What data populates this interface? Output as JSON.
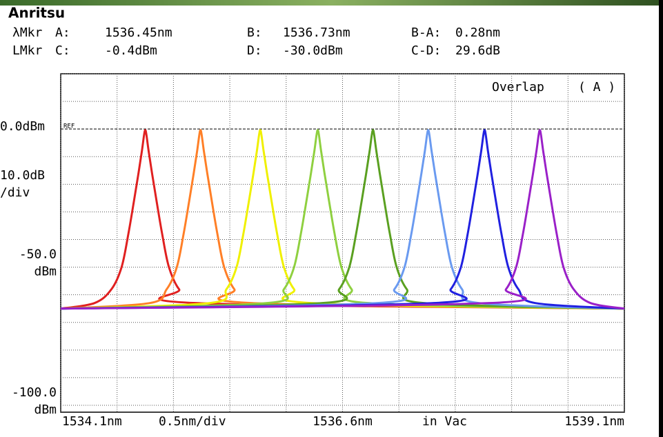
{
  "header": {
    "logo": "Anritsu"
  },
  "markers": {
    "rows": [
      [
        "λMkr",
        "A:",
        "1536.45nm",
        "B:",
        "1536.73nm",
        "B-A:",
        "0.28nm"
      ],
      [
        "LMkr",
        "C:",
        "-0.4dBm",
        "D:",
        "-30.0dBm",
        "C-D:",
        "29.6dB"
      ]
    ]
  },
  "chart_data": {
    "type": "line",
    "annotations": {
      "overlap": "Overlap",
      "trace": "( A )",
      "ref": "REF"
    },
    "xlim": [
      1534.1,
      1539.1
    ],
    "xticks": [
      1534.1,
      1534.6,
      1535.1,
      1535.6,
      1536.1,
      1536.6,
      1537.1,
      1537.6,
      1538.1,
      1538.6,
      1539.1
    ],
    "x_labels": [
      {
        "value": 1534.1,
        "label": "1534.1nm"
      },
      {
        "value": 1536.6,
        "label": "1536.6nm"
      },
      {
        "value": 1539.1,
        "label": "1539.1nm"
      }
    ],
    "x_scale": "0.5nm/div",
    "x_note": "in Vac",
    "ylim": [
      -102.5,
      20
    ],
    "yticks": [
      20,
      10,
      0,
      -10,
      -20,
      -30,
      -40,
      -50,
      -60,
      -70,
      -80,
      -90,
      -100
    ],
    "y_labels": [
      {
        "value": 0,
        "label": "0.0dBm"
      },
      {
        "value": -50,
        "label": "-50.0"
      },
      {
        "value": -100,
        "label": "-100.0"
      }
    ],
    "y_unit": "dBm",
    "y_scale": "10.0dB",
    "y_scale_unit": "/div",
    "series": [
      {
        "color": "#e02020",
        "x": [
          1534.1,
          1534.4,
          1534.55,
          1534.64,
          1534.7,
          1534.75,
          1534.79,
          1534.82,
          1534.84,
          1534.85,
          1534.86,
          1534.88,
          1534.91,
          1534.95,
          1535.0,
          1535.06,
          1535.15,
          1535.3,
          1539.1
        ],
        "values": [
          -65,
          -63,
          -58,
          -50,
          -38,
          -26,
          -16,
          -8,
          -2,
          -0.4,
          -2,
          -8,
          -16,
          -26,
          -38,
          -50,
          -58,
          -63,
          -65
        ]
      },
      {
        "color": "#ff7f27",
        "x": [
          1534.1,
          1534.89,
          1535.04,
          1535.13,
          1535.19,
          1535.24,
          1535.28,
          1535.31,
          1535.33,
          1535.34,
          1535.35,
          1535.37,
          1535.4,
          1535.44,
          1535.49,
          1535.55,
          1535.64,
          1535.79,
          1539.1
        ],
        "values": [
          -65,
          -63,
          -58,
          -50,
          -38,
          -26,
          -16,
          -8,
          -2,
          -0.4,
          -2,
          -8,
          -16,
          -26,
          -38,
          -50,
          -58,
          -63,
          -65
        ]
      },
      {
        "color": "#f0f000",
        "x": [
          1534.1,
          1535.42,
          1535.57,
          1535.66,
          1535.72,
          1535.77,
          1535.81,
          1535.84,
          1535.86,
          1535.87,
          1535.88,
          1535.9,
          1535.93,
          1535.97,
          1536.02,
          1536.08,
          1536.17,
          1536.32,
          1539.1
        ],
        "values": [
          -65,
          -63,
          -58,
          -50,
          -38,
          -26,
          -16,
          -8,
          -2,
          -0.4,
          -2,
          -8,
          -16,
          -26,
          -38,
          -50,
          -58,
          -63,
          -65
        ]
      },
      {
        "color": "#8fd040",
        "x": [
          1534.1,
          1535.93,
          1536.08,
          1536.17,
          1536.23,
          1536.28,
          1536.32,
          1536.35,
          1536.37,
          1536.38,
          1536.39,
          1536.41,
          1536.44,
          1536.48,
          1536.53,
          1536.59,
          1536.68,
          1536.83,
          1539.1
        ],
        "values": [
          -65,
          -63,
          -58,
          -50,
          -38,
          -26,
          -16,
          -8,
          -2,
          -0.4,
          -2,
          -8,
          -16,
          -26,
          -38,
          -50,
          -58,
          -63,
          -65
        ]
      },
      {
        "color": "#5aa020",
        "x": [
          1534.1,
          1536.42,
          1536.57,
          1536.66,
          1536.72,
          1536.77,
          1536.81,
          1536.84,
          1536.86,
          1536.87,
          1536.88,
          1536.9,
          1536.93,
          1536.97,
          1537.02,
          1537.08,
          1537.17,
          1537.32,
          1539.1
        ],
        "values": [
          -65,
          -63,
          -58,
          -50,
          -38,
          -26,
          -16,
          -8,
          -2,
          -0.4,
          -2,
          -8,
          -16,
          -26,
          -38,
          -50,
          -58,
          -63,
          -65
        ]
      },
      {
        "color": "#6a9af0",
        "x": [
          1534.1,
          1536.91,
          1537.06,
          1537.15,
          1537.21,
          1537.26,
          1537.3,
          1537.33,
          1537.35,
          1537.36,
          1537.37,
          1537.39,
          1537.42,
          1537.46,
          1537.51,
          1537.57,
          1537.66,
          1537.81,
          1539.1
        ],
        "values": [
          -65,
          -63,
          -58,
          -50,
          -38,
          -26,
          -16,
          -8,
          -2,
          -0.4,
          -2,
          -8,
          -16,
          -26,
          -38,
          -50,
          -58,
          -63,
          -65
        ]
      },
      {
        "color": "#2020e0",
        "x": [
          1534.1,
          1537.41,
          1537.56,
          1537.65,
          1537.71,
          1537.76,
          1537.8,
          1537.83,
          1537.85,
          1537.86,
          1537.87,
          1537.89,
          1537.92,
          1537.96,
          1538.01,
          1538.07,
          1538.16,
          1538.31,
          1539.1
        ],
        "values": [
          -65,
          -63,
          -58,
          -50,
          -38,
          -26,
          -16,
          -8,
          -2,
          -0.4,
          -2,
          -8,
          -16,
          -26,
          -38,
          -50,
          -58,
          -63,
          -65
        ]
      },
      {
        "color": "#9a20c8",
        "x": [
          1534.1,
          1537.9,
          1538.05,
          1538.14,
          1538.2,
          1538.25,
          1538.29,
          1538.32,
          1538.34,
          1538.35,
          1538.36,
          1538.38,
          1538.41,
          1538.45,
          1538.5,
          1538.56,
          1538.65,
          1538.8,
          1539.1
        ],
        "values": [
          -65,
          -63,
          -58,
          -50,
          -38,
          -26,
          -16,
          -8,
          -2,
          -0.4,
          -2,
          -8,
          -16,
          -26,
          -38,
          -50,
          -58,
          -63,
          -65
        ]
      }
    ]
  }
}
